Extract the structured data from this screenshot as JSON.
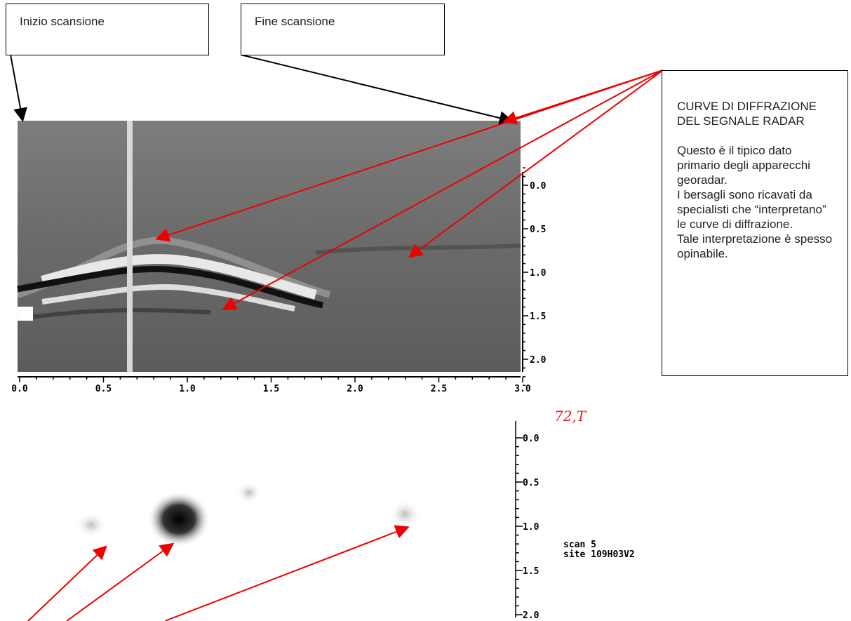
{
  "callouts": {
    "start": "Inizio scansione",
    "end": "Fine scansione",
    "note": {
      "title": "CURVE DI DIFFRAZIONE DEL SEGNALE RADAR",
      "paragraphs": [
        "Questo è il tipico dato primario degli apparecchi georadar.",
        "I bersagli sono ricavati da specialisti che “interpretano” le curve di diffrazione.",
        "Tale interpretazione è spesso opinabile."
      ]
    }
  },
  "radargram": {
    "x_ticks": [
      "0.0",
      "0.5",
      "1.0",
      "1.5",
      "2.0",
      "2.5",
      "3.0"
    ],
    "y_ticks": [
      "0.0",
      "0.5",
      "1.0",
      "1.5",
      "2.0"
    ]
  },
  "depth_map": {
    "handwritten": "72,T",
    "y_ticks": [
      "0.0",
      "0.5",
      "1.0",
      "1.5",
      "2.0"
    ],
    "info": [
      "scan 5",
      "site 109H03V2"
    ]
  }
}
